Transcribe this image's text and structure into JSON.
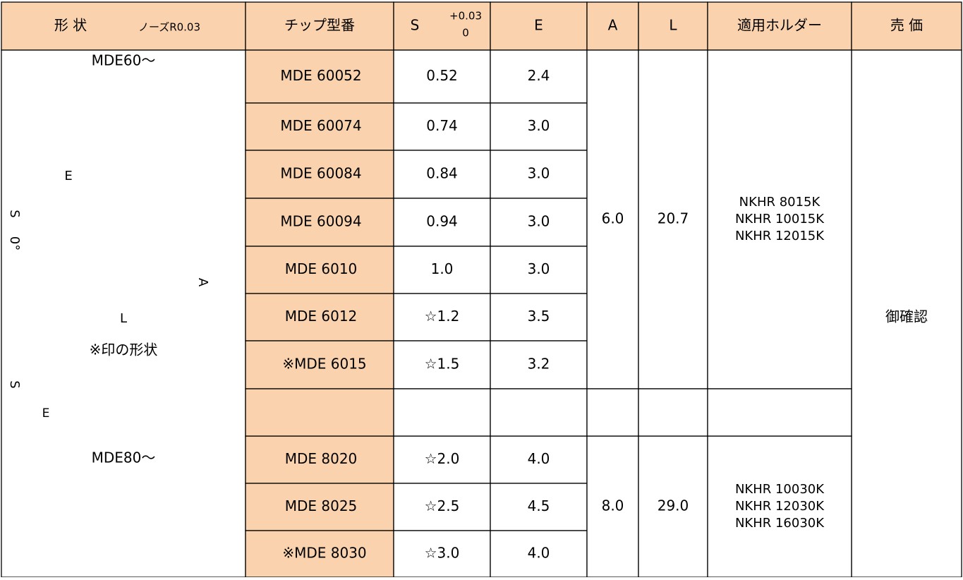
{
  "header": {
    "shape": "形 状",
    "nose": "ノーズR0.03",
    "tip": "チップ型番",
    "s": "S",
    "s_tol_upper": "+0.03",
    "s_tol_lower": "0",
    "e": "E",
    "a": "A",
    "l": "L",
    "holder": "適用ホルダー",
    "price": "売 価"
  },
  "figure": {
    "label_60": "MDE60〜",
    "dim_e": "E",
    "dim_s": "S",
    "dim_angle": "0°",
    "dim_a": "A",
    "dim_l": "L",
    "note": "※印の形状",
    "dim_s2": "S",
    "dim_e2": "E",
    "label_80": "MDE80〜"
  },
  "groups": [
    {
      "rows": [
        [
          "MDE 60052",
          "0.52",
          "2.4"
        ],
        [
          "MDE 60074",
          "0.74",
          "3.0"
        ],
        [
          "MDE 60084",
          "0.84",
          "3.0"
        ],
        [
          "MDE 60094",
          "0.94",
          "3.0"
        ],
        [
          "MDE 6010",
          "1.0",
          "3.0"
        ],
        [
          "MDE 6012",
          "☆1.2",
          "3.5"
        ],
        [
          "※MDE 6015",
          "☆1.5",
          "3.2"
        ]
      ],
      "a": "6.0",
      "l": "20.7",
      "holders": [
        "NKHR 8015K",
        "NKHR 10015K",
        "NKHR 12015K"
      ]
    },
    {
      "rows": [
        [
          "MDE 8020",
          "☆2.0",
          "4.0"
        ],
        [
          "MDE 8025",
          "☆2.5",
          "4.5"
        ],
        [
          "※MDE 8030",
          "☆3.0",
          "4.0"
        ]
      ],
      "a": "8.0",
      "l": "29.0",
      "holders": [
        "NKHR 10030K",
        "NKHR 12030K",
        "NKHR 16030K"
      ]
    }
  ],
  "price": "御確認"
}
